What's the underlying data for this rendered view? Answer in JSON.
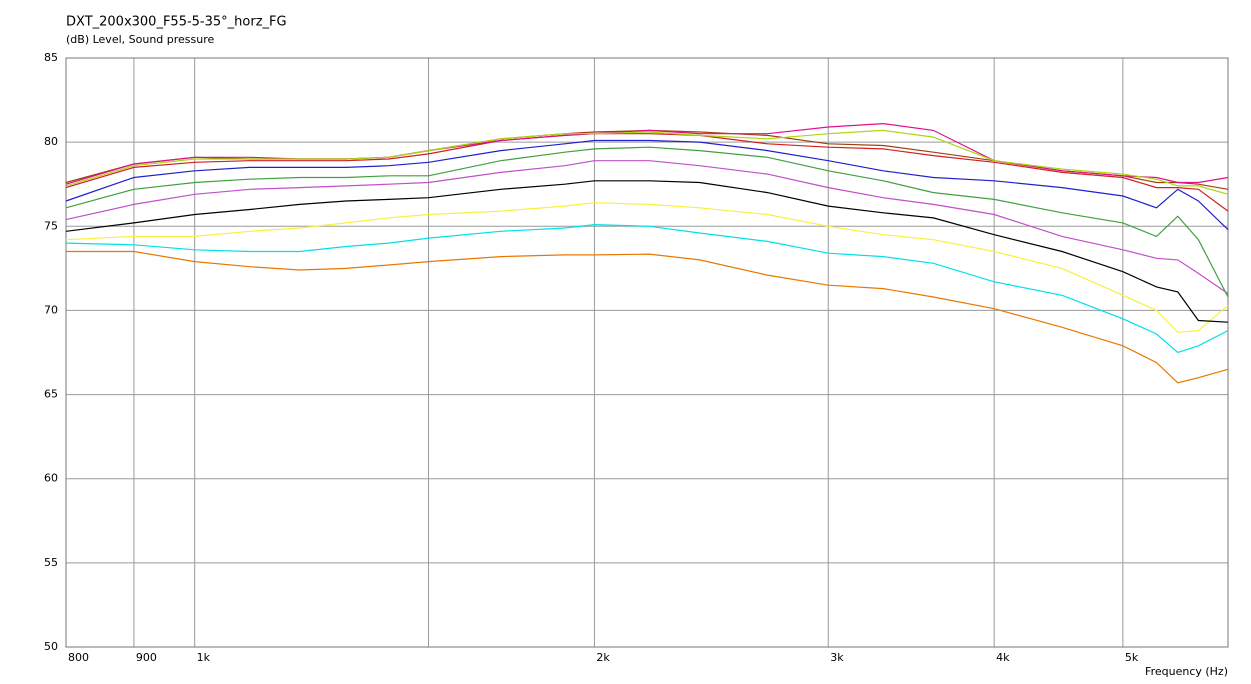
{
  "chart_data": {
    "type": "line",
    "title": "DXT_200x300_F55-5-35°_horz_FG",
    "y_label": "(dB)  Level, Sound pressure",
    "x_label": "Frequency  (Hz)",
    "xscale": "log",
    "grid": true,
    "xlim": [
      800,
      6000
    ],
    "ylim": [
      50,
      85
    ],
    "yticks": [
      50,
      55,
      60,
      65,
      70,
      75,
      80,
      85
    ],
    "xticks": [
      800,
      900,
      {
        "value": 1000,
        "label": "1k"
      },
      {
        "value": 1500,
        "label": null
      },
      {
        "value": 2000,
        "label": "2k"
      },
      {
        "value": 3000,
        "label": "3k"
      },
      {
        "value": 4000,
        "label": "4k"
      },
      {
        "value": 5000,
        "label": "5k"
      }
    ],
    "x": [
      800,
      900,
      1000,
      1100,
      1200,
      1300,
      1400,
      1500,
      1700,
      1900,
      2000,
      2200,
      2400,
      2700,
      3000,
      3300,
      3600,
      4000,
      4500,
      5000,
      5300,
      5500,
      5700,
      6000
    ],
    "series": [
      {
        "color": "#e87800",
        "values": [
          73.5,
          73.5,
          72.9,
          72.6,
          72.4,
          72.5,
          72.7,
          72.9,
          73.2,
          73.3,
          73.3,
          73.35,
          73.0,
          72.1,
          71.5,
          71.3,
          70.8,
          70.1,
          69.0,
          67.9,
          66.9,
          65.7,
          66.0,
          66.5
        ]
      },
      {
        "color": "#00e0e8",
        "values": [
          74.0,
          73.9,
          73.6,
          73.5,
          73.5,
          73.8,
          74.0,
          74.3,
          74.7,
          74.9,
          75.1,
          75.0,
          74.6,
          74.1,
          73.4,
          73.2,
          72.8,
          71.7,
          70.9,
          69.5,
          68.6,
          67.5,
          67.9,
          68.8
        ]
      },
      {
        "color": "#f8f040",
        "values": [
          74.2,
          74.4,
          74.4,
          74.7,
          74.9,
          75.2,
          75.5,
          75.7,
          75.9,
          76.2,
          76.4,
          76.3,
          76.1,
          75.7,
          75.0,
          74.5,
          74.2,
          73.5,
          72.5,
          70.9,
          70.0,
          68.7,
          68.8,
          70.3
        ]
      },
      {
        "color": "#000000",
        "values": [
          74.7,
          75.2,
          75.7,
          76.0,
          76.3,
          76.5,
          76.6,
          76.7,
          77.2,
          77.5,
          77.7,
          77.7,
          77.6,
          77.0,
          76.2,
          75.8,
          75.5,
          74.5,
          73.5,
          72.3,
          71.4,
          71.1,
          69.4,
          69.3
        ]
      },
      {
        "color": "#c050c8",
        "values": [
          75.4,
          76.3,
          76.9,
          77.2,
          77.3,
          77.4,
          77.5,
          77.6,
          78.2,
          78.6,
          78.9,
          78.9,
          78.6,
          78.1,
          77.3,
          76.7,
          76.3,
          75.7,
          74.4,
          73.6,
          73.1,
          73.0,
          72.2,
          71.0
        ]
      },
      {
        "color": "#40a040",
        "values": [
          76.1,
          77.2,
          77.6,
          77.8,
          77.9,
          77.9,
          78.0,
          78.0,
          78.9,
          79.4,
          79.6,
          79.7,
          79.5,
          79.1,
          78.3,
          77.7,
          77.0,
          76.6,
          75.8,
          75.2,
          74.4,
          75.6,
          74.2,
          70.8
        ]
      },
      {
        "color": "#2020d0",
        "values": [
          76.5,
          77.9,
          78.3,
          78.5,
          78.5,
          78.5,
          78.6,
          78.8,
          79.5,
          79.9,
          80.1,
          80.1,
          80.0,
          79.5,
          78.9,
          78.3,
          77.9,
          77.7,
          77.3,
          76.8,
          76.1,
          77.2,
          76.5,
          74.8
        ]
      },
      {
        "color": "#d02020",
        "values": [
          77.3,
          78.5,
          78.8,
          78.9,
          78.9,
          78.9,
          79.0,
          79.3,
          80.1,
          80.4,
          80.5,
          80.5,
          80.4,
          79.9,
          79.7,
          79.6,
          79.2,
          78.8,
          78.2,
          77.9,
          77.3,
          77.3,
          77.2,
          75.9
        ]
      },
      {
        "color": "#a04010",
        "values": [
          77.6,
          78.7,
          79.1,
          79.0,
          79.0,
          79.0,
          79.1,
          79.5,
          80.2,
          80.5,
          80.6,
          80.7,
          80.6,
          80.4,
          79.9,
          79.8,
          79.4,
          78.9,
          78.3,
          78.0,
          77.6,
          77.6,
          77.5,
          77.2
        ]
      },
      {
        "color": "#e0108c",
        "values": [
          77.5,
          78.7,
          79.1,
          79.1,
          79.0,
          79.0,
          79.1,
          79.5,
          80.1,
          80.4,
          80.5,
          80.7,
          80.5,
          80.5,
          80.9,
          81.1,
          80.7,
          78.9,
          78.3,
          78.0,
          77.9,
          77.6,
          77.6,
          77.9
        ]
      },
      {
        "color": "#a8d810",
        "values": [
          77.4,
          78.6,
          79.0,
          79.0,
          79.0,
          79.0,
          79.1,
          79.5,
          80.2,
          80.5,
          80.5,
          80.6,
          80.4,
          80.2,
          80.5,
          80.7,
          80.3,
          78.9,
          78.4,
          78.1,
          77.8,
          77.4,
          77.4,
          76.9
        ]
      }
    ]
  }
}
